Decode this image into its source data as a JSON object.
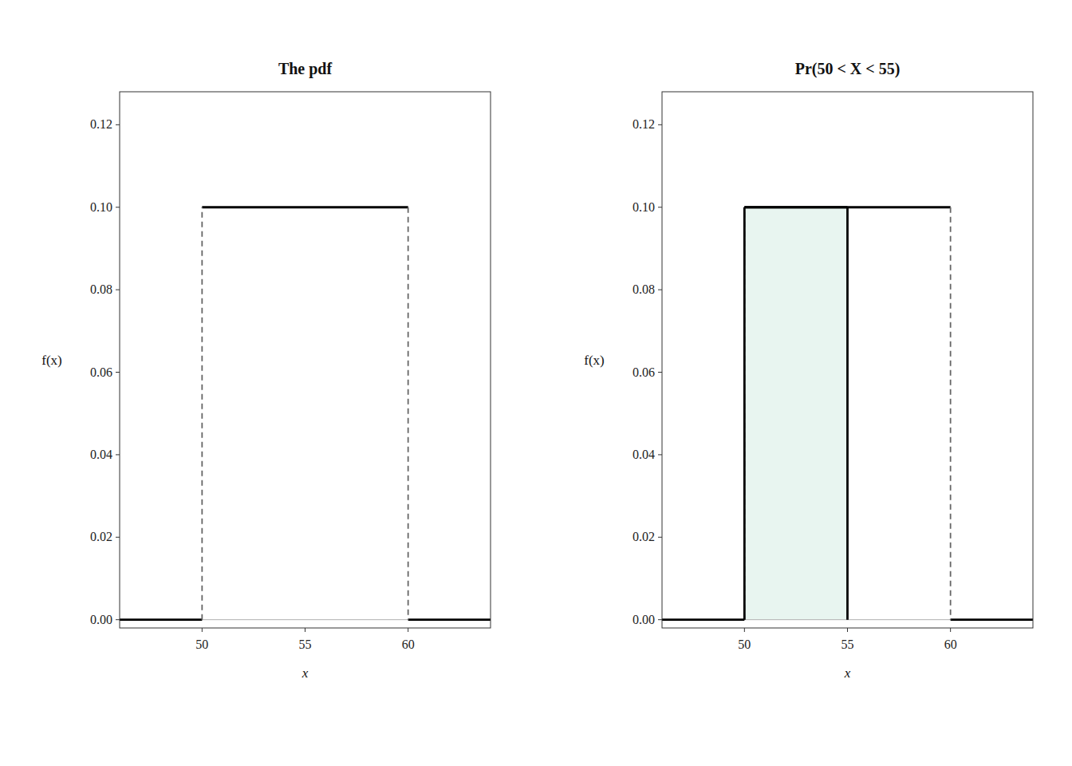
{
  "chart_data": [
    {
      "type": "line",
      "title": "The pdf",
      "x_label": "x",
      "y_label": "f(x)",
      "xlim": [
        46,
        64
      ],
      "ylim": [
        -0.002,
        0.128
      ],
      "xticks": [
        50,
        55,
        60
      ],
      "yticks": [
        {
          "value": 0.0,
          "label": "0.00"
        },
        0.02,
        0.04,
        0.06,
        0.08,
        {
          "value": 0.1,
          "label": "0.10"
        },
        0.12
      ],
      "grid": false,
      "series": [
        {
          "type": "line",
          "color": "#b0b0b0",
          "x": [
            46,
            64
          ],
          "values": [
            0,
            0
          ]
        },
        {
          "type": "line",
          "color": "#000000",
          "line_style": "solid",
          "x": [
            46,
            50,
            null,
            50,
            60,
            null,
            60,
            64
          ],
          "values": [
            0,
            0,
            null,
            0.1,
            0.1,
            null,
            0,
            0
          ]
        },
        {
          "type": "line",
          "color": "#666666",
          "line_style": "dashed",
          "x": [
            50,
            50,
            null,
            60,
            60
          ],
          "values": [
            0,
            0.1,
            null,
            0.1,
            0
          ]
        }
      ]
    },
    {
      "type": "line",
      "title": "Pr(50 < X < 55)",
      "x_label": "x",
      "y_label": "f(x)",
      "xlim": [
        46,
        64
      ],
      "ylim": [
        -0.002,
        0.128
      ],
      "xticks": [
        50,
        55,
        60
      ],
      "yticks": [
        {
          "value": 0.0,
          "label": "0.00"
        },
        0.02,
        0.04,
        0.06,
        0.08,
        {
          "value": 0.1,
          "label": "0.10"
        },
        0.12
      ],
      "grid": false,
      "series": [
        {
          "type": "area",
          "color": "#e8f5f0",
          "x": [
            50,
            55
          ],
          "values": [
            0.1,
            0.1
          ],
          "base": [
            0,
            0
          ]
        },
        {
          "type": "line",
          "color": "#b0b0b0",
          "x": [
            46,
            64
          ],
          "values": [
            0,
            0
          ]
        },
        {
          "type": "line",
          "color": "#000000",
          "line_style": "solid",
          "x": [
            46,
            50,
            null,
            50,
            60,
            null,
            60,
            64
          ],
          "values": [
            0,
            0,
            null,
            0.1,
            0.1,
            null,
            0,
            0
          ]
        },
        {
          "type": "line",
          "color": "#666666",
          "line_style": "dashed",
          "x": [
            50,
            50,
            null,
            60,
            60
          ],
          "values": [
            0,
            0.1,
            null,
            0.1,
            0
          ]
        },
        {
          "type": "line",
          "color": "#000000",
          "line_style": "solid",
          "x": [
            50,
            50,
            null,
            55,
            55,
            null,
            50,
            55
          ],
          "values": [
            0,
            0.1,
            null,
            0,
            0.1,
            null,
            0.1,
            0.1
          ]
        }
      ]
    }
  ]
}
